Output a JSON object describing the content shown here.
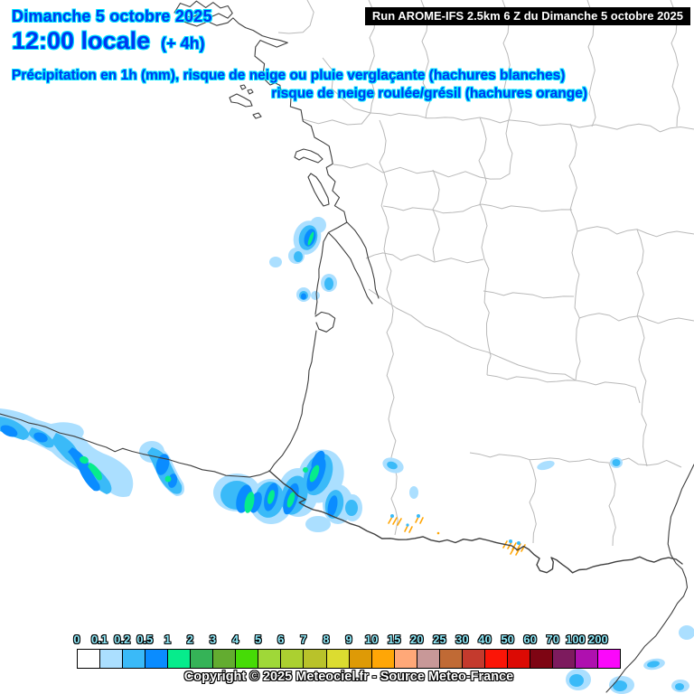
{
  "header": {
    "date_line": "Dimanche 5 octobre 2025",
    "time_line": "12:00 locale",
    "time_offset": "(+ 4h)",
    "subtitle_line1": "Précipitation en 1h (mm), risque de neige ou pluie verglaçante (hachures blanches)",
    "subtitle_line2": "risque de neige roulée/grésil (hachures orange)"
  },
  "run_box": {
    "label": "Run AROME-IFS 2.5km 6 Z du Dimanche 5 octobre 2025"
  },
  "legend": {
    "title_unit": "mm",
    "labels": [
      "0",
      "0.1",
      "0.2",
      "0.5",
      "1",
      "2",
      "3",
      "4",
      "5",
      "6",
      "7",
      "8",
      "9",
      "10",
      "15",
      "20",
      "25",
      "30",
      "40",
      "50",
      "60",
      "70",
      "100",
      "200"
    ],
    "colors": [
      "#FFFFFF",
      "#ABDFFF",
      "#3ABAF8",
      "#0A8CFF",
      "#06EC8C",
      "#35B357",
      "#63AC30",
      "#46DB06",
      "#9FD838",
      "#ABD030",
      "#B9C22A",
      "#DCDC30",
      "#DE9A06",
      "#FFA606",
      "#FFA878",
      "#C89898",
      "#C06A35",
      "#C43A2D",
      "#FB1507",
      "#DC0A04",
      "#7E0513",
      "#7D1B5E",
      "#AF10AF",
      "#FB08FB"
    ]
  },
  "footer": {
    "copyright": "Copyright © 2025 Meteociel.fr - Source Meteo-France"
  },
  "theme": {
    "header_fill": "#0238F0",
    "header_rim": "#00E8FF",
    "legend_label_fill": "#8EE9F9",
    "run_bg": "#000000",
    "run_fg": "#FFFFFF",
    "coast_line": "#3F3F3F",
    "dept_line": "#B9B9B9",
    "precip_01": "#ABDFFF",
    "precip_02": "#3ABAF8",
    "precip_05": "#0A8CFF",
    "precip_1": "#06EC8C",
    "hatch_orange": "#FFA606"
  }
}
